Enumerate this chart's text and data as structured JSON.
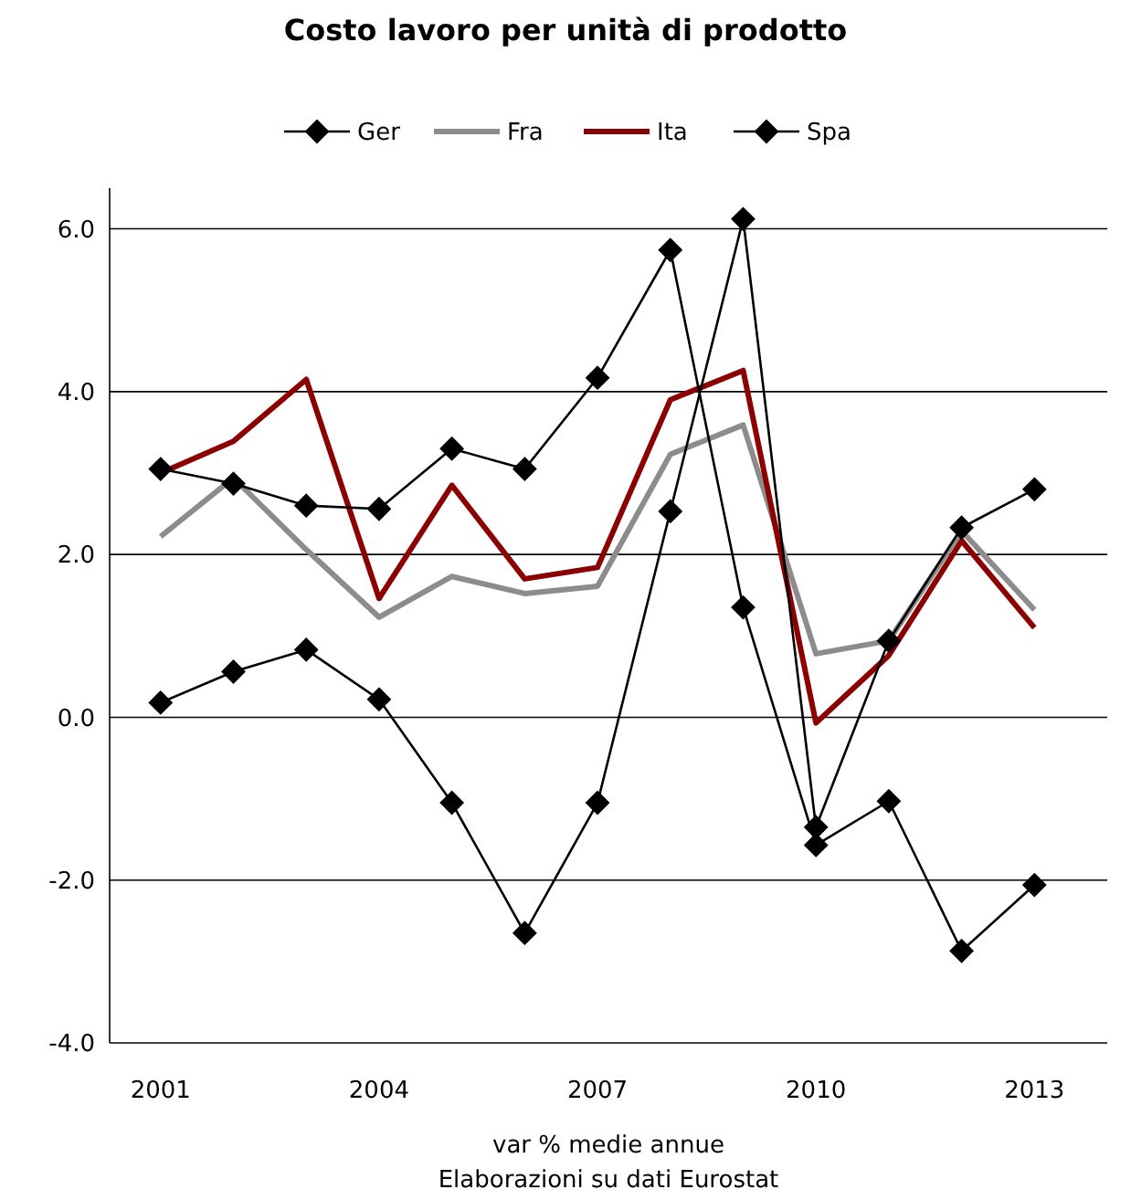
{
  "chart_data": {
    "type": "line",
    "title": "Costo lavoro per unità di prodotto",
    "xlabel": "var % medie annue",
    "annotations": [
      "Elaborazioni su dati Eurostat"
    ],
    "x": [
      2001,
      2002,
      2003,
      2004,
      2005,
      2006,
      2007,
      2008,
      2009,
      2010,
      2011,
      2012,
      2013
    ],
    "xlim": [
      2000.3,
      2014
    ],
    "xticks": [
      2001,
      2004,
      2007,
      2010,
      2013
    ],
    "ylim": [
      -4,
      6.5
    ],
    "yticks": [
      {
        "value": -4,
        "label": "-4.0"
      },
      {
        "value": -2,
        "label": "-2.0"
      },
      {
        "value": 0,
        "label": "0.0"
      },
      {
        "value": 2,
        "label": "2.0"
      },
      {
        "value": 4,
        "label": "4.0"
      },
      {
        "value": 6,
        "label": "6.0"
      }
    ],
    "grid": "y",
    "legend": "top",
    "series": [
      {
        "name": "Ger",
        "color": "#000000",
        "marker": "diamond",
        "values": [
          0.18,
          0.56,
          0.83,
          0.22,
          -1.05,
          -2.65,
          -1.05,
          2.53,
          6.12,
          -1.35,
          0.94,
          2.33,
          2.8
        ]
      },
      {
        "name": "Fra",
        "color": "#8c8c8c",
        "marker": "none",
        "values": [
          2.22,
          2.94,
          2.06,
          1.23,
          1.73,
          1.52,
          1.61,
          3.23,
          3.59,
          0.78,
          0.94,
          2.29,
          1.32
        ]
      },
      {
        "name": "Ita",
        "color": "#8b0000",
        "marker": "none",
        "values": [
          3.0,
          3.39,
          4.15,
          1.46,
          2.85,
          1.7,
          1.84,
          3.9,
          4.26,
          -0.07,
          0.76,
          2.17,
          1.1
        ]
      },
      {
        "name": "Spa",
        "color": "#000000",
        "marker": "diamond",
        "values": [
          3.05,
          2.87,
          2.6,
          2.56,
          3.3,
          3.05,
          4.17,
          5.74,
          1.35,
          -1.57,
          -1.03,
          -2.87,
          -2.06
        ]
      }
    ]
  }
}
